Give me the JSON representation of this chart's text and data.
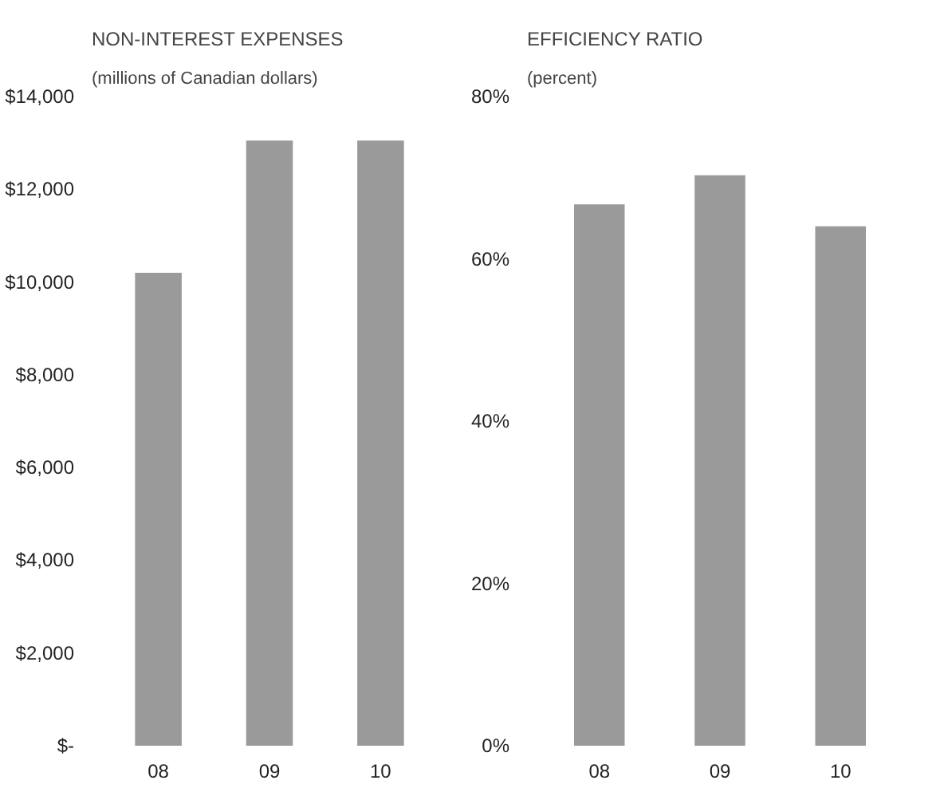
{
  "chart_data": [
    {
      "type": "bar",
      "title": "NON-INTEREST EXPENSES",
      "subtitle": "(millions of Canadian dollars)",
      "categories": [
        "08",
        "09",
        "10"
      ],
      "values": [
        10200,
        13050,
        13050
      ],
      "color": "#9a9a9a",
      "ylim": [
        0,
        14000
      ],
      "yticks": [
        {
          "value": 0,
          "label": "$-"
        },
        {
          "value": 2000,
          "label": "$2,000"
        },
        {
          "value": 4000,
          "label": "$4,000"
        },
        {
          "value": 6000,
          "label": "$6,000"
        },
        {
          "value": 8000,
          "label": "$8,000"
        },
        {
          "value": 10000,
          "label": "$10,000"
        },
        {
          "value": 12000,
          "label": "$12,000"
        },
        {
          "value": 14000,
          "label": "$14,000"
        }
      ],
      "grid": false
    },
    {
      "type": "bar",
      "title": "EFFICIENCY RATIO",
      "subtitle": "(percent)",
      "categories": [
        "08",
        "09",
        "10"
      ],
      "values": [
        66.7,
        70.3,
        64.0
      ],
      "color": "#9a9a9a",
      "ylim": [
        0,
        80
      ],
      "yticks": [
        {
          "value": 0,
          "label": "0%"
        },
        {
          "value": 20,
          "label": "20%"
        },
        {
          "value": 40,
          "label": "40%"
        },
        {
          "value": 60,
          "label": "60%"
        },
        {
          "value": 80,
          "label": "80%"
        }
      ],
      "grid": false
    }
  ]
}
